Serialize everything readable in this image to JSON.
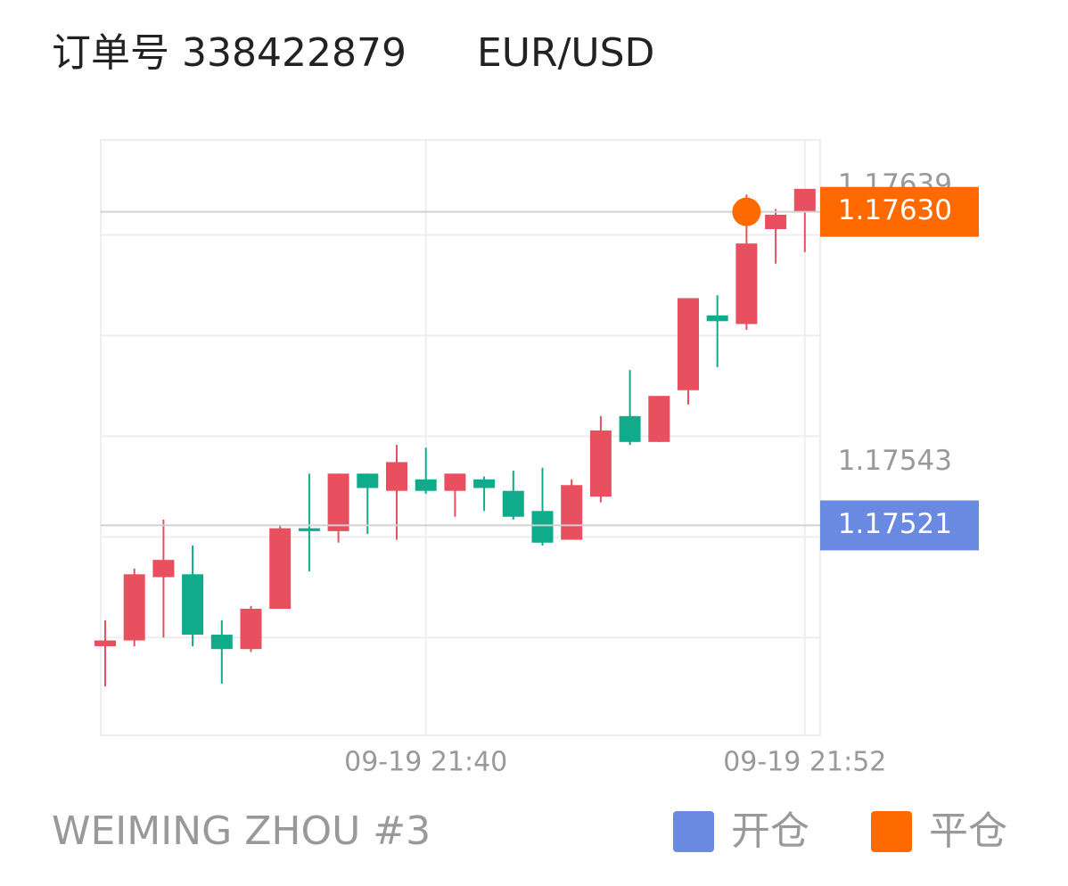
{
  "header": {
    "order": "订单号 338422879",
    "symbol": "EUR/USD"
  },
  "chart_data": {
    "type": "candlestick",
    "categories": [
      null,
      null,
      null,
      null,
      null,
      null,
      null,
      null,
      null,
      null,
      null,
      "09-19 21:40",
      null,
      null,
      null,
      null,
      null,
      null,
      null,
      null,
      null,
      null,
      null,
      null,
      "09-19 21:52"
    ],
    "open": [
      1.17479,
      1.17481,
      1.17503,
      1.17504,
      1.17483,
      1.17478,
      1.17492,
      1.1752,
      1.17519,
      1.17539,
      1.17533,
      1.17537,
      1.17533,
      1.17537,
      1.17533,
      1.17526,
      1.17516,
      1.17531,
      1.17559,
      1.1755,
      1.17568,
      1.17594,
      1.17591,
      1.17624,
      1.1763
    ],
    "high": [
      1.17488,
      1.17506,
      1.17523,
      1.17514,
      1.17488,
      1.17493,
      1.17521,
      1.17539,
      1.17539,
      1.17539,
      1.17549,
      1.17548,
      1.17539,
      1.17538,
      1.1754,
      1.17541,
      1.17537,
      1.17559,
      1.17575,
      1.17566,
      1.176,
      1.17601,
      1.17636,
      1.17631,
      1.17638
    ],
    "low": [
      1.17465,
      1.17479,
      1.17482,
      1.17479,
      1.17466,
      1.17477,
      1.17492,
      1.17505,
      1.17515,
      1.17518,
      1.17516,
      1.17532,
      1.17524,
      1.17526,
      1.17523,
      1.17514,
      1.17516,
      1.17529,
      1.17549,
      1.1755,
      1.17563,
      1.17576,
      1.17589,
      1.17612,
      1.17616
    ],
    "close": [
      1.17481,
      1.17504,
      1.17509,
      1.17483,
      1.17478,
      1.17492,
      1.1752,
      1.17519,
      1.17539,
      1.17534,
      1.17543,
      1.17533,
      1.17539,
      1.17534,
      1.17524,
      1.17515,
      1.17535,
      1.17554,
      1.1755,
      1.17566,
      1.176,
      1.17592,
      1.17619,
      1.17629,
      1.17638
    ],
    "up_color": "#e8505f",
    "down_color": "#10ab8b",
    "ylim": [
      1.17448,
      1.17655
    ],
    "yticks": [
      1.17639,
      1.17543
    ],
    "ygrid": [
      1.17622,
      1.17587,
      1.17552,
      1.17517,
      1.17482
    ],
    "markers": [
      {
        "name": "开仓",
        "color": "#6a89e0",
        "value": {
          "value": 1.17521,
          "label": "1.17521"
        }
      },
      {
        "name": "平仓",
        "color": "#ff6a00",
        "value": {
          "value": 1.1763,
          "label": "1.17630"
        },
        "point_index": 22
      }
    ]
  },
  "footer": {
    "account": "WEIMING ZHOU #3"
  }
}
